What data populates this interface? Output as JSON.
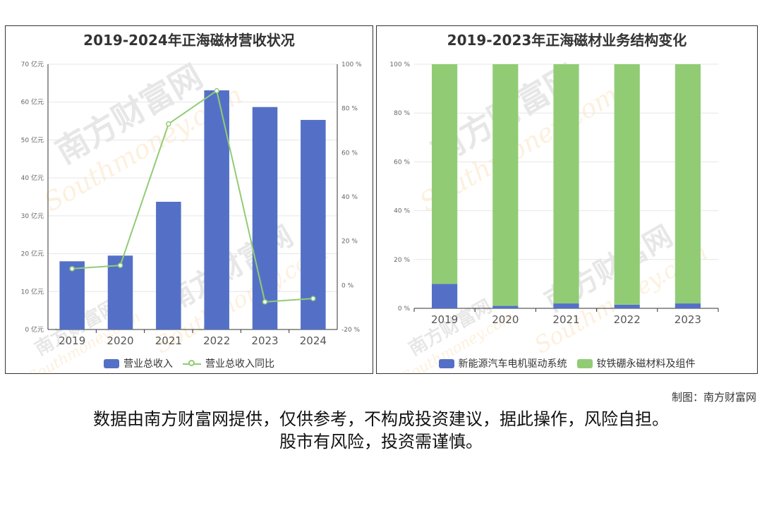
{
  "colors": {
    "blue": "#5470c6",
    "green": "#91cc75",
    "axis": "#333333",
    "grid": "#e6e6e6"
  },
  "watermark": {
    "cn": "南方财富网",
    "en": "Southmoney.com"
  },
  "charts": {
    "left": {
      "title": "2019-2024年正海磁材营收状况",
      "legend": {
        "bar": "营业总收入",
        "line": "营业总收入同比"
      },
      "y_left_ticks": [
        "0 亿元",
        "10 亿元",
        "20 亿元",
        "30 亿元",
        "40 亿元",
        "50 亿元",
        "60 亿元",
        "70 亿元"
      ],
      "y_right_ticks": [
        "-20 %",
        "0 %",
        "20 %",
        "40 %",
        "60 %",
        "80 %",
        "100 %"
      ]
    },
    "right": {
      "title": "2019-2023年正海磁材业务结构变化",
      "legend": {
        "a": "新能源汽车电机驱动系统",
        "b": "钕铁硼永磁材料及组件"
      },
      "y_ticks": [
        "0 %",
        "20 %",
        "40 %",
        "60 %",
        "80 %",
        "100 %"
      ]
    }
  },
  "chart_data": [
    {
      "type": "bar",
      "title": "2019-2024年正海磁材营收状况",
      "categories": [
        "2019",
        "2020",
        "2021",
        "2022",
        "2023",
        "2024"
      ],
      "ylim": [
        0,
        70
      ],
      "y2lim": [
        -20,
        100
      ],
      "grid": true,
      "legend_position": "bottom",
      "series": [
        {
          "name": "营业总收入",
          "type": "bar",
          "axis": "left",
          "values": [
            18.0,
            19.5,
            33.7,
            63.1,
            58.7,
            55.3
          ]
        },
        {
          "name": "营业总收入同比",
          "type": "line",
          "axis": "right",
          "values": [
            7.5,
            9.0,
            73.0,
            88.0,
            -7.5,
            -6.0
          ]
        }
      ]
    },
    {
      "type": "bar",
      "stacked": true,
      "title": "2019-2023年正海磁材业务结构变化",
      "categories": [
        "2019",
        "2020",
        "2021",
        "2022",
        "2023"
      ],
      "ylim": [
        0,
        100
      ],
      "grid": true,
      "legend_position": "bottom",
      "series": [
        {
          "name": "新能源汽车电机驱动系统",
          "values": [
            10.0,
            1.0,
            2.0,
            1.5,
            2.0
          ]
        },
        {
          "name": "钕铁硼永磁材料及组件",
          "values": [
            90.0,
            99.0,
            98.0,
            98.5,
            98.0
          ]
        }
      ]
    }
  ],
  "credit": "制图：南方财富网",
  "disclaimer": {
    "line1": "数据由南方财富网提供，仅供参考，不构成投资建议，据此操作，风险自担。",
    "line2": "股市有风险，投资需谨慎。"
  }
}
